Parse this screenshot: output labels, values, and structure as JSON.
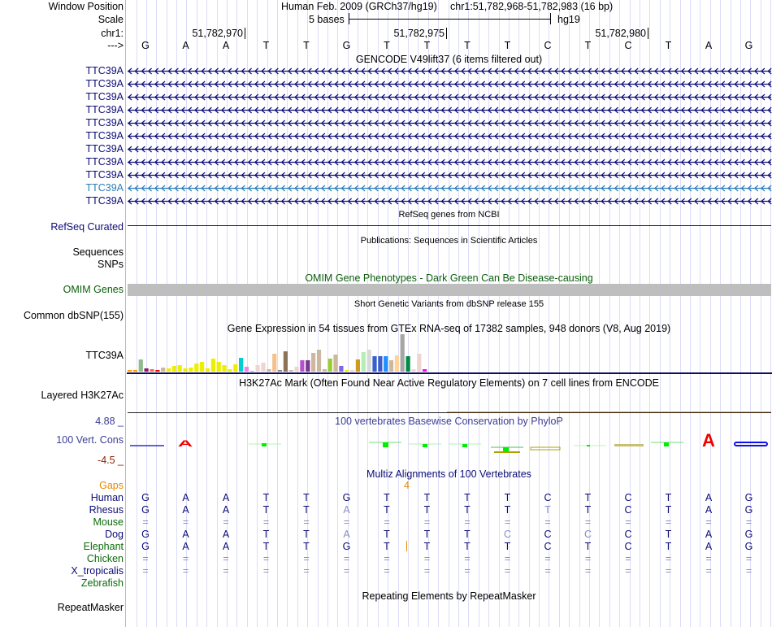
{
  "header": {
    "window_position_label": "Window Position",
    "scale_label": "Scale",
    "chrom_label": "chr1:",
    "strand_label": "--->",
    "assembly": "Human Feb. 2009 (GRCh37/hg19)",
    "position": "chr1:51,782,968-51,782,983 (16 bp)",
    "scale_text": "5 bases",
    "scale_db": "hg19",
    "ticks": [
      "51,782,970",
      "51,782,975",
      "51,782,980"
    ]
  },
  "sequence": [
    "G",
    "A",
    "A",
    "T",
    "T",
    "G",
    "T",
    "T",
    "T",
    "T",
    "C",
    "T",
    "C",
    "T",
    "A",
    "G"
  ],
  "gencode": {
    "title": "GENCODE V49lift37 (6 items filtered out)",
    "items": [
      "TTC39A",
      "TTC39A",
      "TTC39A",
      "TTC39A",
      "TTC39A",
      "TTC39A",
      "TTC39A",
      "TTC39A",
      "TTC39A",
      "TTC39A",
      "TTC39A"
    ],
    "highlight_index": 9,
    "color": "#0c0c78",
    "highlight_color": "#2a7fb8"
  },
  "refseq": {
    "title": "RefSeq genes from NCBI",
    "label": "RefSeq Curated"
  },
  "publications": {
    "title": "Publications: Sequences in Scientific Articles",
    "label1": "Sequences",
    "label2": "SNPs"
  },
  "omim": {
    "title": "OMIM Gene Phenotypes - Dark Green Can Be Disease-causing",
    "label": "OMIM Genes",
    "color": "#0b5f0b"
  },
  "dbsnp": {
    "title": "Short Genetic Variants from dbSNP release 155",
    "label": "Common dbSNP(155)"
  },
  "gtex": {
    "title": "Gene Expression in 54 tissues from GTEx RNA-seq of 17382 samples, 948 donors (V8, Aug 2019)",
    "label": "TTC39A"
  },
  "chart_data": {
    "type": "bar",
    "title": "Gene Expression in 54 tissues from GTEx RNA-seq of 17382 samples, 948 donors (V8, Aug 2019)",
    "note": "relative expression per tissue (arbitrary units, estimated)",
    "values": [
      2,
      2,
      15,
      4,
      3,
      2,
      5,
      4,
      7,
      8,
      4,
      5,
      10,
      12,
      4,
      16,
      12,
      8,
      3,
      9,
      17,
      6,
      1,
      8,
      11,
      3,
      22,
      2,
      25,
      2,
      6,
      14,
      14,
      23,
      27,
      3,
      16,
      21,
      7,
      2,
      2,
      15,
      24,
      27,
      19,
      19,
      19,
      14,
      20,
      46,
      19,
      3,
      22,
      3
    ],
    "colors": [
      "#ff9900",
      "#ff9900",
      "#8fbc8f",
      "#8b1c62",
      "#ff6347",
      "#ee0000",
      "#cdb79e",
      "#eeee00",
      "#eeee00",
      "#eeee00",
      "#eeee00",
      "#eeee00",
      "#eeee00",
      "#eeee00",
      "#eeee00",
      "#eeee00",
      "#eeee00",
      "#eeee00",
      "#eeee00",
      "#eeee00",
      "#00ced1",
      "#ee82ee",
      "#8fb3c8",
      "#eed5d2",
      "#eed5d2",
      "#cdb79e",
      "#f4c28e",
      "#888888",
      "#8b7355",
      "#cdb79e",
      "#eed5d2",
      "#b452cd",
      "#7a378b",
      "#cdb79e",
      "#cdb79e",
      "#cdb79e",
      "#9acd32",
      "#cdb79e",
      "#7b68ee",
      "#eeee00",
      "#eed5d2",
      "#cd9b1d",
      "#b4eeb4",
      "#d9d9d9",
      "#3a5fcd",
      "#3a5fcd",
      "#1e90ff",
      "#cdb79e",
      "#ffd39b",
      "#a6a6a6",
      "#008b45",
      "#eed5d2",
      "#eed5d2",
      "#ff00ff"
    ]
  },
  "h3k27ac": {
    "title": "H3K27Ac Mark (Often Found Near Active Regulatory Elements) on 7 cell lines from ENCODE",
    "label": "Layered H3K27Ac"
  },
  "phylop": {
    "title": "100 vertebrates Basewise Conservation by PhyloP",
    "label": "100 Vert. Cons",
    "max": "4.88 _",
    "min": "-4.5 _"
  },
  "multiz": {
    "title": "Multiz Alignments of 100 Vertebrates",
    "gaps_label": "Gaps",
    "gap_count": "4",
    "species": [
      {
        "name": "Human",
        "color": "#0c0c78",
        "bases": [
          "G",
          "A",
          "A",
          "T",
          "T",
          "G",
          "T",
          "T",
          "T",
          "T",
          "C",
          "T",
          "C",
          "T",
          "A",
          "G"
        ],
        "faint": []
      },
      {
        "name": "Rhesus",
        "color": "#0c0c78",
        "bases": [
          "G",
          "A",
          "A",
          "T",
          "T",
          "A",
          "T",
          "T",
          "T",
          "T",
          "T",
          "T",
          "C",
          "T",
          "A",
          "G"
        ],
        "faint": [
          5,
          10
        ]
      },
      {
        "name": "Mouse",
        "color": "#0b6b0b",
        "bases": [
          "=",
          "=",
          "=",
          "=",
          "=",
          "=",
          "=",
          "=",
          "=",
          "=",
          "=",
          "=",
          "=",
          "=",
          "=",
          "="
        ],
        "faint": []
      },
      {
        "name": "Dog",
        "color": "#0c0c78",
        "bases": [
          "G",
          "A",
          "A",
          "T",
          "T",
          "A",
          "T",
          "T",
          "T",
          "C",
          "C",
          "C",
          "C",
          "T",
          "A",
          "G"
        ],
        "faint": [
          5,
          9,
          11
        ]
      },
      {
        "name": "Elephant",
        "color": "#0b6b0b",
        "bases": [
          "G",
          "A",
          "A",
          "T",
          "T",
          "G",
          "T",
          "T",
          "T",
          "T",
          "C",
          "T",
          "C",
          "T",
          "A",
          "G"
        ],
        "faint": []
      },
      {
        "name": "Chicken",
        "color": "#0b6b0b",
        "bases": [
          "=",
          "=",
          "=",
          "=",
          "=",
          "=",
          "=",
          "=",
          "=",
          "=",
          "=",
          "=",
          "=",
          "=",
          "=",
          "="
        ],
        "faint": []
      },
      {
        "name": "X_tropicalis",
        "color": "#0c0c78",
        "bases": [
          "=",
          "=",
          "=",
          "=",
          "=",
          "=",
          "=",
          "=",
          "=",
          "=",
          "=",
          "=",
          "=",
          "=",
          "=",
          "="
        ],
        "faint": []
      },
      {
        "name": "Zebrafish",
        "color": "#0b6b0b",
        "bases": [],
        "faint": []
      }
    ]
  },
  "repeatmasker": {
    "title": "Repeating Elements by RepeatMasker",
    "label": "RepeatMasker"
  }
}
